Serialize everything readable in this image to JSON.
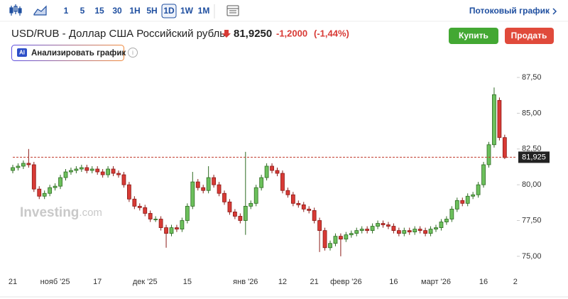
{
  "toolbar": {
    "intervals": [
      "1",
      "5",
      "15",
      "30",
      "1H",
      "5H",
      "1D",
      "1W",
      "1M"
    ],
    "active": "1D",
    "stream": "Потоковый график"
  },
  "header": {
    "title": "USD/RUB - Доллар США Российский рубль",
    "price": "81,9250",
    "change": "-1,2000",
    "change_pct": "(-1,44%)"
  },
  "buttons": {
    "buy": "Купить",
    "sell": "Продать",
    "analyze_badge": "AI",
    "analyze": "Анализировать график"
  },
  "watermark": [
    "Investing",
    ".com"
  ],
  "chart_data": {
    "type": "candlestick",
    "up_color": "#6cc05c",
    "down_color": "#d83a35",
    "grid": false,
    "categories": [
      "21",
      null,
      null,
      null,
      null,
      null,
      null,
      null,
      "нояб '25",
      null,
      null,
      null,
      null,
      null,
      null,
      null,
      "17",
      null,
      null,
      null,
      null,
      null,
      null,
      null,
      null,
      "дек '25",
      null,
      null,
      null,
      null,
      null,
      null,
      null,
      "15",
      null,
      null,
      null,
      null,
      null,
      null,
      null,
      null,
      null,
      null,
      "янв '26",
      null,
      null,
      null,
      null,
      null,
      null,
      "12",
      null,
      null,
      null,
      null,
      null,
      "21",
      null,
      null,
      null,
      null,
      null,
      "февр '26",
      null,
      null,
      null,
      null,
      null,
      null,
      null,
      null,
      "16",
      null,
      null,
      null,
      null,
      null,
      null,
      null,
      "март '26",
      null,
      null,
      null,
      null,
      null,
      null,
      null,
      null,
      "16",
      null,
      null,
      null,
      null,
      null,
      "2"
    ],
    "open": [
      81.0,
      81.2,
      81.3,
      81.5,
      81.4,
      79.7,
      79.2,
      79.4,
      79.8,
      79.9,
      80.5,
      80.9,
      81.0,
      81.1,
      81.2,
      81.0,
      81.1,
      80.9,
      80.7,
      81.1,
      80.8,
      80.7,
      80.0,
      79.0,
      78.5,
      78.4,
      78.0,
      77.6,
      77.6,
      77.0,
      76.6,
      77.0,
      76.9,
      77.5,
      78.5,
      80.2,
      79.8,
      79.6,
      80.5,
      80.0,
      79.4,
      78.8,
      78.1,
      77.8,
      77.5,
      78.5,
      78.7,
      79.8,
      80.5,
      81.3,
      81.0,
      80.8,
      79.6,
      79.3,
      78.7,
      78.6,
      78.3,
      78.2,
      77.5,
      76.8,
      75.6,
      75.9,
      76.4,
      76.2,
      76.5,
      76.6,
      76.8,
      76.9,
      76.8,
      77.1,
      77.3,
      77.2,
      77.1,
      76.8,
      76.6,
      76.8,
      76.7,
      76.9,
      76.8,
      76.6,
      76.9,
      77.0,
      77.4,
      77.6,
      78.3,
      78.9,
      78.7,
      79.2,
      79.3,
      80.0,
      81.4,
      82.8,
      85.9,
      83.3,
      null,
      null
    ],
    "close": [
      81.2,
      81.3,
      81.5,
      81.4,
      79.7,
      79.2,
      79.4,
      79.8,
      79.9,
      80.5,
      80.9,
      81.0,
      81.1,
      81.2,
      81.0,
      81.1,
      80.9,
      80.7,
      81.1,
      80.8,
      80.7,
      80.0,
      79.0,
      78.5,
      78.4,
      78.0,
      77.6,
      77.6,
      77.0,
      76.6,
      77.0,
      76.9,
      77.5,
      78.5,
      80.2,
      79.8,
      79.6,
      80.5,
      80.0,
      79.4,
      78.8,
      78.1,
      77.8,
      77.5,
      78.5,
      78.7,
      79.8,
      80.5,
      81.3,
      81.0,
      80.8,
      79.6,
      79.3,
      78.7,
      78.6,
      78.3,
      78.2,
      77.5,
      76.8,
      75.6,
      75.9,
      76.4,
      76.2,
      76.5,
      76.6,
      76.8,
      76.9,
      76.8,
      77.1,
      77.3,
      77.2,
      77.1,
      76.8,
      76.6,
      76.8,
      76.7,
      76.9,
      76.8,
      76.6,
      76.9,
      77.0,
      77.4,
      77.6,
      78.3,
      78.9,
      78.7,
      79.2,
      79.3,
      80.0,
      81.4,
      82.8,
      86.3,
      83.3,
      81.9,
      null,
      null
    ],
    "high": [
      81.4,
      81.5,
      81.7,
      82.5,
      81.6,
      79.9,
      79.6,
      80.0,
      80.1,
      80.7,
      81.1,
      81.2,
      81.3,
      81.4,
      81.4,
      81.3,
      81.3,
      81.1,
      81.3,
      81.3,
      81.0,
      80.9,
      80.2,
      79.2,
      78.7,
      78.6,
      78.2,
      77.8,
      77.8,
      77.2,
      77.2,
      77.2,
      77.7,
      78.7,
      80.9,
      80.4,
      80.0,
      81.3,
      80.7,
      80.2,
      79.6,
      79.0,
      78.3,
      78.0,
      82.3,
      78.9,
      80.0,
      80.7,
      81.5,
      81.5,
      81.2,
      81.0,
      79.8,
      79.5,
      78.9,
      78.8,
      78.5,
      78.4,
      77.7,
      77.0,
      76.1,
      76.6,
      76.6,
      76.7,
      76.8,
      77.0,
      77.1,
      77.1,
      77.3,
      77.5,
      77.5,
      77.4,
      77.3,
      77.0,
      77.0,
      77.0,
      77.1,
      77.1,
      77.0,
      77.1,
      77.2,
      77.6,
      77.8,
      78.5,
      79.1,
      79.1,
      79.4,
      79.5,
      80.2,
      81.6,
      83.0,
      86.8,
      86.1,
      83.5,
      null,
      null
    ],
    "low": [
      80.8,
      81.0,
      81.1,
      81.2,
      79.5,
      79.0,
      79.0,
      79.2,
      79.6,
      79.7,
      80.3,
      80.7,
      80.8,
      80.9,
      80.8,
      80.8,
      80.7,
      80.5,
      80.5,
      80.6,
      80.5,
      79.8,
      78.8,
      78.3,
      78.2,
      77.8,
      77.4,
      77.4,
      76.8,
      75.6,
      76.4,
      76.7,
      76.7,
      77.3,
      78.3,
      79.6,
      79.4,
      79.4,
      79.8,
      79.2,
      78.6,
      77.9,
      77.6,
      77.3,
      76.5,
      78.3,
      78.5,
      79.6,
      80.3,
      80.8,
      80.6,
      79.4,
      79.1,
      78.5,
      78.4,
      78.1,
      78.0,
      77.3,
      75.3,
      75.4,
      75.4,
      75.7,
      75.0,
      76.0,
      76.3,
      76.4,
      76.6,
      76.6,
      76.6,
      76.9,
      77.0,
      76.9,
      76.6,
      76.4,
      76.4,
      76.5,
      76.5,
      76.6,
      76.4,
      76.4,
      76.7,
      76.8,
      77.2,
      77.4,
      78.1,
      78.5,
      78.5,
      79.0,
      79.1,
      79.8,
      81.2,
      82.6,
      83.1,
      81.8,
      null,
      null
    ],
    "last_price": {
      "value": 81.925,
      "label": "81,925"
    },
    "ylim": [
      74.0,
      88.2
    ],
    "yticks": [
      {
        "value": 75,
        "label": "75,00"
      },
      {
        "value": 77.5,
        "label": "77,50"
      },
      {
        "value": 80,
        "label": "80,00"
      },
      {
        "value": 82.5,
        "label": "82,50"
      },
      {
        "value": 85,
        "label": "85,00"
      },
      {
        "value": 87.5,
        "label": "87,50"
      }
    ]
  }
}
